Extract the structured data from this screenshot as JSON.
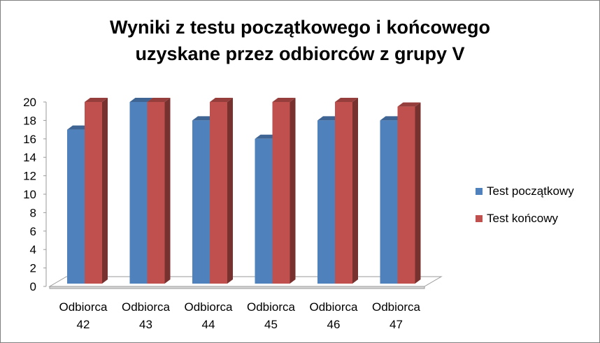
{
  "chart_data": {
    "type": "bar",
    "title_lines": [
      "Wyniki z testu początkowego i końcowego",
      "uzyskane przez odbiorców z grupy V"
    ],
    "categories": [
      [
        "Odbiorca",
        "42"
      ],
      [
        "Odbiorca",
        "43"
      ],
      [
        "Odbiorca",
        "44"
      ],
      [
        "Odbiorca",
        "45"
      ],
      [
        "Odbiorca",
        "46"
      ],
      [
        "Odbiorca",
        "47"
      ]
    ],
    "series": [
      {
        "name": "Test początkowy",
        "values": [
          17,
          20,
          18,
          16,
          18,
          18
        ],
        "color": "#4f81bd"
      },
      {
        "name": "Test końcowy",
        "values": [
          20,
          20,
          20,
          20,
          20,
          19.5
        ],
        "color": "#c0504d"
      }
    ],
    "ylim": [
      0,
      20
    ],
    "yticks": [
      "0",
      "2",
      "4",
      "6",
      "8",
      "10",
      "12",
      "14",
      "16",
      "18",
      "20"
    ],
    "xlabel": "",
    "ylabel": "",
    "grid": false,
    "legend_position": "right",
    "style": "3d-bar"
  }
}
